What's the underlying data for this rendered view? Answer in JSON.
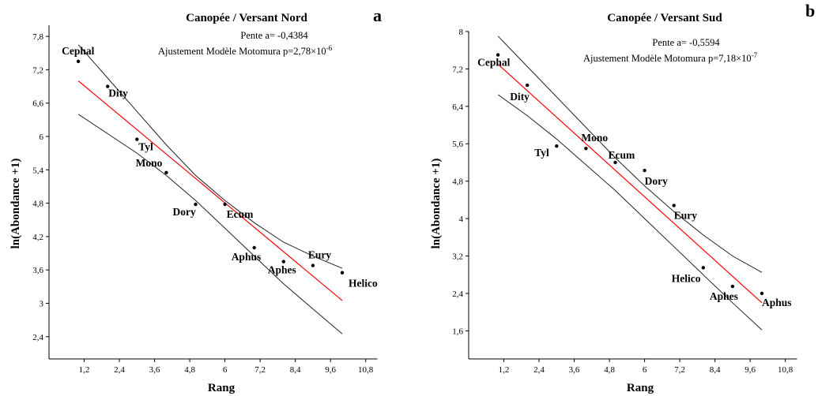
{
  "chart_data": [
    {
      "type": "scatter",
      "panel_letter": "a",
      "title": "Canopée / Versant Nord",
      "slope_text": "Pente a= -0,4384",
      "fit_text": "Ajustement Modèle Motomura p=2,78×10",
      "fit_exponent": "-6",
      "xlabel": "Rang",
      "ylabel": "ln(Abondance +1)",
      "xlim": [
        0,
        11.2
      ],
      "ylim": [
        2.0,
        8.0
      ],
      "xticks": [
        "1,2",
        "2,4",
        "3,6",
        "4,8",
        "6",
        "7,2",
        "8,4",
        "9,6",
        "10,8"
      ],
      "yticks": [
        "2,4",
        "3",
        "3,6",
        "4,2",
        "4,8",
        "5,4",
        "6",
        "6,6",
        "7,2",
        "7,8"
      ],
      "points": [
        {
          "label": "Cephal",
          "x": 1,
          "y": 7.35
        },
        {
          "label": "Dity",
          "x": 2,
          "y": 6.9
        },
        {
          "label": "Tyl",
          "x": 3,
          "y": 5.95
        },
        {
          "label": "Mono",
          "x": 4,
          "y": 5.35
        },
        {
          "label": "Dory",
          "x": 5,
          "y": 4.78
        },
        {
          "label": "Ecum",
          "x": 6,
          "y": 4.78
        },
        {
          "label": "Aphus",
          "x": 7,
          "y": 4.0
        },
        {
          "label": "Aphes",
          "x": 8,
          "y": 3.75
        },
        {
          "label": "Eury",
          "x": 9,
          "y": 3.68
        },
        {
          "label": "Helico",
          "x": 10,
          "y": 3.55
        }
      ],
      "fit_line": {
        "x": [
          1,
          10
        ],
        "y": [
          7.0,
          3.05
        ],
        "color": "#ff0000"
      },
      "upper_band": {
        "x": [
          1,
          2,
          3,
          4,
          5,
          6,
          7,
          8,
          9,
          10
        ],
        "y": [
          7.65,
          7.05,
          6.45,
          5.85,
          5.3,
          4.85,
          4.45,
          4.1,
          3.85,
          3.63
        ]
      },
      "lower_band": {
        "x": [
          1,
          2,
          3,
          4,
          5,
          6,
          7,
          8,
          9,
          10
        ],
        "y": [
          6.4,
          6.05,
          5.7,
          5.3,
          4.85,
          4.35,
          3.85,
          3.35,
          2.9,
          2.45
        ]
      }
    },
    {
      "type": "scatter",
      "panel_letter": "b",
      "title": "Canopée / Versant Sud",
      "slope_text": "Pente a= -0,5594",
      "fit_text": "Ajustement Modèle Motomura p=7,18×10",
      "fit_exponent": "-7",
      "xlabel": "Rang",
      "ylabel": "ln(Abondance +1)",
      "xlim": [
        0,
        11.2
      ],
      "ylim": [
        1.0,
        8.0
      ],
      "xticks": [
        "1,2",
        "2,4",
        "3,6",
        "4,8",
        "6",
        "7,2",
        "8,4",
        "9,6",
        "10,8"
      ],
      "yticks": [
        "1,6",
        "2,4",
        "3,2",
        "4",
        "4,8",
        "5,6",
        "6,4",
        "7,2",
        "8"
      ],
      "points": [
        {
          "label": "Cephal",
          "x": 1,
          "y": 7.5
        },
        {
          "label": "Dity",
          "x": 2,
          "y": 6.85
        },
        {
          "label": "Tyl",
          "x": 3,
          "y": 5.55
        },
        {
          "label": "Mono",
          "x": 4,
          "y": 5.5
        },
        {
          "label": "Ecum",
          "x": 5,
          "y": 5.2
        },
        {
          "label": "Dory",
          "x": 6,
          "y": 5.03
        },
        {
          "label": "Eury",
          "x": 7,
          "y": 4.28
        },
        {
          "label": "Helico",
          "x": 8,
          "y": 2.95
        },
        {
          "label": "Aphes",
          "x": 9,
          "y": 2.55
        },
        {
          "label": "Aphus",
          "x": 10,
          "y": 2.4
        }
      ],
      "fit_line": {
        "x": [
          1,
          10
        ],
        "y": [
          7.3,
          2.2
        ],
        "color": "#ff0000"
      },
      "upper_band": {
        "x": [
          1,
          2,
          3,
          4,
          5,
          6,
          7,
          8,
          9,
          10
        ],
        "y": [
          7.9,
          7.25,
          6.6,
          5.95,
          5.3,
          4.7,
          4.15,
          3.65,
          3.2,
          2.85
        ]
      },
      "lower_band": {
        "x": [
          1,
          2,
          3,
          4,
          5,
          6,
          7,
          8,
          9,
          10
        ],
        "y": [
          6.65,
          6.2,
          5.7,
          5.15,
          4.6,
          4.0,
          3.4,
          2.8,
          2.2,
          1.62
        ]
      }
    }
  ]
}
